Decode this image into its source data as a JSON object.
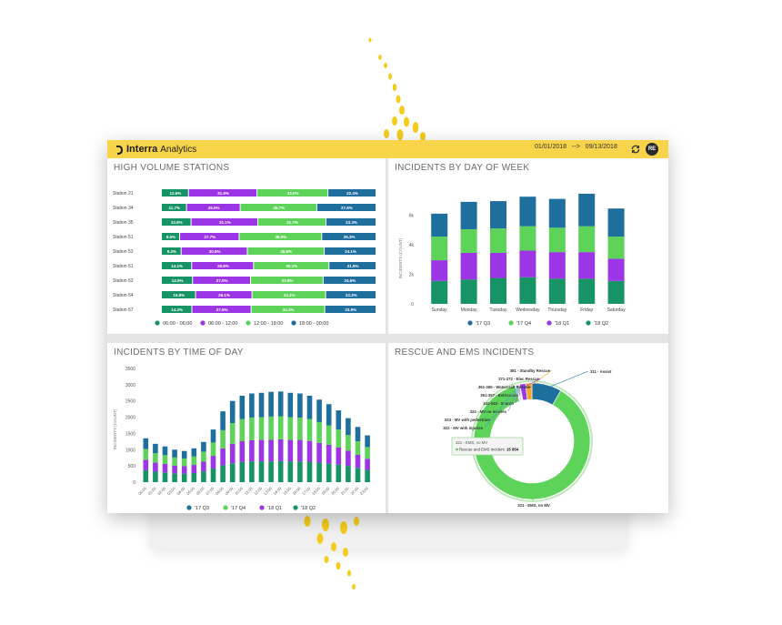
{
  "app": {
    "brand_name": "Interra",
    "brand_sub": "Analytics",
    "date_from": "01/01/2018",
    "date_arrow": "-->",
    "date_to": "09/13/2018",
    "avatar_initials": "RE",
    "accent": "#f7d44a"
  },
  "colors": {
    "q3_17": "#1e6e9e",
    "q4_17": "#5dd35a",
    "q1_18": "#9b35e6",
    "q2_18": "#179466",
    "station_green_dark": "#179466",
    "station_purple": "#9b35e6",
    "station_green": "#5dd35a",
    "station_blue": "#1e6e9e"
  },
  "panels": {
    "stations_title": "HIGH VOLUME STATIONS",
    "dow_title": "INCIDENTS BY DAY OF WEEK",
    "tod_title": "INCIDENTS BY TIME OF DAY",
    "rescue_title": "RESCUE AND EMS INCIDENTS"
  },
  "chart_data": [
    {
      "type": "bar",
      "orientation": "horizontal-stacked-100",
      "title": "HIGH VOLUME STATIONS",
      "categories": [
        "Station 21",
        "Station 34",
        "Station 35",
        "Station 51",
        "Station 53",
        "Station 61",
        "Station 62",
        "Station 64",
        "Station 67"
      ],
      "series": [
        {
          "name": "06:00 - 06:00",
          "values": [
            12.6,
            11.7,
            13.8,
            8.5,
            9.2,
            14.1,
            14.5,
            15.8,
            14.2
          ],
          "labels": [
            "12.6%",
            "11.7%",
            "13.8%",
            "8.5%",
            "9.2%",
            "14.1%",
            "14.5%",
            "15.8%",
            "14.2%"
          ]
        },
        {
          "name": "06:00 - 12:00",
          "values": [
            31.9,
            25.0,
            31.1,
            27.7,
            30.8,
            28.8,
            27.0,
            26.1,
            27.6
          ],
          "labels": [
            "31.9%",
            "25.0%",
            "31.1%",
            "27.7%",
            "30.8%",
            "28.8%",
            "27.0%",
            "26.1%",
            "27.6%"
          ]
        },
        {
          "name": "12:00 - 18:00",
          "values": [
            33.0,
            35.7,
            31.7,
            38.5,
            35.8,
            35.1,
            33.8,
            34.1,
            34.3
          ],
          "labels": [
            "33.0%",
            "35.7%",
            "31.7%",
            "38.5%",
            "35.8%",
            "35.1%",
            "33.8%",
            "34.1%",
            "34.3%"
          ]
        },
        {
          "name": "18:00 - 00:00",
          "values": [
            22.4,
            27.6,
            23.3,
            25.3,
            24.1,
            21.9,
            24.6,
            23.3,
            23.9
          ],
          "labels": [
            "22.4%",
            "27.6%",
            "23.3%",
            "25.3%",
            "24.1%",
            "21.9%",
            "24.6%",
            "23.3%",
            "23.9%"
          ]
        }
      ],
      "legend": "bottom"
    },
    {
      "type": "bar",
      "orientation": "vertical-stacked",
      "title": "INCIDENTS BY DAY OF WEEK",
      "ylabel": "INCIDENTS (COUNT)",
      "yticks": [
        "0",
        "2k",
        "4k",
        "6k"
      ],
      "ylim": [
        0,
        8000
      ],
      "categories": [
        "Sunday",
        "Monday",
        "Tuesday",
        "Wednesday",
        "Thursday",
        "Friday",
        "Saturday"
      ],
      "series": [
        {
          "name": "'18 Q2",
          "values": [
            1550,
            1650,
            1750,
            1800,
            1700,
            1700,
            1550
          ]
        },
        {
          "name": "'18 Q1",
          "values": [
            1400,
            1800,
            1700,
            1800,
            1800,
            1800,
            1500
          ]
        },
        {
          "name": "'17 Q4",
          "values": [
            1600,
            1600,
            1650,
            1650,
            1650,
            1750,
            1500
          ]
        },
        {
          "name": "'17 Q3",
          "values": [
            1550,
            1850,
            1850,
            2000,
            1950,
            2200,
            1900
          ]
        }
      ],
      "legend_order": [
        "'17 Q3",
        "'17 Q4",
        "'18 Q1",
        "'18 Q2"
      ],
      "legend": "bottom"
    },
    {
      "type": "bar",
      "orientation": "vertical-stacked",
      "title": "INCIDENTS BY TIME OF DAY",
      "ylabel": "INCIDENTS (COUNT)",
      "yticks": [
        "0",
        "500",
        "1000",
        "1500",
        "2000",
        "2500",
        "3000",
        "3500"
      ],
      "ylim": [
        0,
        3500
      ],
      "categories": [
        "00:00",
        "01:00",
        "02:00",
        "03:00",
        "04:00",
        "05:00",
        "06:00",
        "07:00",
        "08:00",
        "09:00",
        "10:00",
        "11:00",
        "12:00",
        "13:00",
        "14:00",
        "15:00",
        "16:00",
        "17:00",
        "18:00",
        "19:00",
        "20:00",
        "21:00",
        "22:00",
        "23:00"
      ],
      "series": [
        {
          "name": "'18 Q2",
          "values": [
            370,
            320,
            300,
            270,
            260,
            280,
            330,
            420,
            520,
            580,
            620,
            640,
            640,
            640,
            650,
            640,
            640,
            630,
            600,
            570,
            540,
            500,
            440,
            380
          ]
        },
        {
          "name": "'18 Q1",
          "values": [
            320,
            280,
            260,
            240,
            230,
            250,
            300,
            390,
            520,
            600,
            640,
            650,
            660,
            670,
            670,
            660,
            660,
            640,
            610,
            580,
            530,
            470,
            400,
            340
          ]
        },
        {
          "name": "'17 Q4",
          "values": [
            330,
            290,
            270,
            250,
            240,
            260,
            310,
            410,
            560,
            640,
            680,
            700,
            700,
            710,
            710,
            700,
            690,
            670,
            640,
            600,
            550,
            480,
            420,
            360
          ]
        },
        {
          "name": "'17 Q3",
          "values": [
            330,
            290,
            270,
            240,
            230,
            250,
            300,
            400,
            580,
            680,
            720,
            740,
            750,
            760,
            760,
            750,
            740,
            720,
            690,
            650,
            590,
            520,
            440,
            360
          ]
        }
      ],
      "legend_order": [
        "'17 Q3",
        "'17 Q4",
        "'18 Q1",
        "'18 Q2"
      ],
      "legend": "bottom"
    },
    {
      "type": "pie",
      "variant": "donut",
      "title": "RESCUE AND EMS INCIDENTS",
      "categories": [
        "311 - Assist",
        "321 - EMS, no MV",
        "322 - MV with injuries",
        "323 - MV with pedestrian",
        "324 - MV no injuries",
        "341-343 - Search",
        "351-357 - Extrication",
        "361-365 - Watercraft Rescue",
        "371-372 - Elec Rescue",
        "381 - Standby Rescue"
      ],
      "values": [
        1500,
        15854,
        40,
        40,
        60,
        40,
        30,
        30,
        300,
        320
      ],
      "colors": [
        "#1e6e9e",
        "#5dd35a",
        "#4aa4c8",
        "#74c76f",
        "#6b8fd1",
        "#b55be6",
        "#2fa47a",
        "#3c7fbf",
        "#9b35e6",
        "#f4a42b"
      ],
      "tooltip": {
        "title": "321 - EMS, no MV",
        "bullet_label": "Rescue and EMS Incident:",
        "value": "15 854"
      }
    }
  ]
}
